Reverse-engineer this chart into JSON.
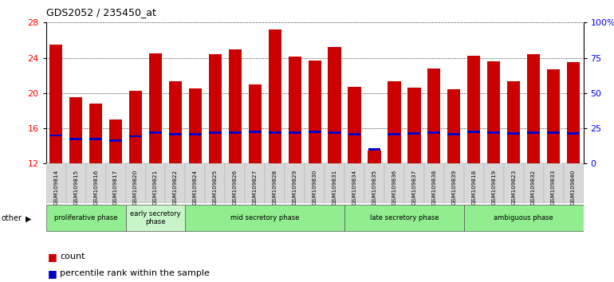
{
  "title": "GDS2052 / 235450_at",
  "samples": [
    "GSM109814",
    "GSM109815",
    "GSM109816",
    "GSM109817",
    "GSM109820",
    "GSM109821",
    "GSM109822",
    "GSM109824",
    "GSM109825",
    "GSM109826",
    "GSM109827",
    "GSM109828",
    "GSM109829",
    "GSM109830",
    "GSM109831",
    "GSM109834",
    "GSM109835",
    "GSM109836",
    "GSM109837",
    "GSM109838",
    "GSM109839",
    "GSM109818",
    "GSM109819",
    "GSM109823",
    "GSM109832",
    "GSM109833",
    "GSM109840"
  ],
  "counts": [
    25.5,
    19.5,
    18.8,
    17.0,
    20.3,
    24.5,
    21.3,
    20.5,
    24.4,
    25.0,
    21.0,
    27.2,
    24.1,
    23.7,
    25.2,
    20.7,
    13.5,
    21.3,
    20.6,
    22.8,
    20.4,
    24.2,
    23.6,
    21.3,
    24.4,
    22.7,
    23.5
  ],
  "percentile_ranks": [
    15.2,
    14.8,
    14.8,
    14.6,
    15.1,
    15.5,
    15.3,
    15.3,
    15.5,
    15.5,
    15.6,
    15.5,
    15.5,
    15.6,
    15.5,
    15.3,
    13.6,
    15.3,
    15.4,
    15.5,
    15.3,
    15.6,
    15.5,
    15.4,
    15.5,
    15.5,
    15.4
  ],
  "phases": [
    {
      "label": "proliferative phase",
      "start": 0,
      "end": 4,
      "color": "#90EE90"
    },
    {
      "label": "early secretory\nphase",
      "start": 4,
      "end": 7,
      "color": "#c8f5c8"
    },
    {
      "label": "mid secretory phase",
      "start": 7,
      "end": 15,
      "color": "#90EE90"
    },
    {
      "label": "late secretory phase",
      "start": 15,
      "end": 21,
      "color": "#90EE90"
    },
    {
      "label": "ambiguous phase",
      "start": 21,
      "end": 27,
      "color": "#90EE90"
    }
  ],
  "bar_color": "#cc0000",
  "percentile_color": "#0000cc",
  "ylim_left": [
    12,
    28
  ],
  "ylim_right": [
    0,
    100
  ],
  "yticks_left": [
    12,
    16,
    20,
    24,
    28
  ],
  "yticks_right": [
    0,
    25,
    50,
    75,
    100
  ],
  "ytick_labels_right": [
    "0",
    "25",
    "50",
    "75",
    "100%"
  ],
  "bar_width": 0.65
}
